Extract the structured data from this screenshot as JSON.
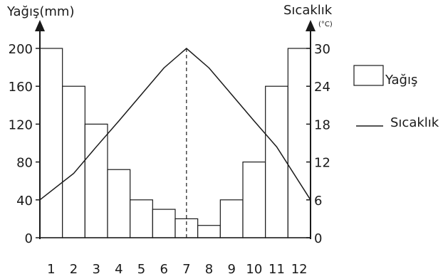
{
  "chart_data": {
    "type": "bar",
    "categories": [
      "1",
      "2",
      "3",
      "4",
      "5",
      "6",
      "7",
      "8",
      "9",
      "10",
      "11",
      "12"
    ],
    "series": [
      {
        "name": "Yağış",
        "type": "bar",
        "axis": "left",
        "values": [
          200,
          160,
          120,
          72,
          40,
          30,
          20,
          13,
          40,
          80,
          160,
          200
        ]
      },
      {
        "name": "Sıcaklık",
        "type": "line",
        "axis": "right",
        "values": [
          6,
          10.2,
          14.4,
          18.5,
          22.7,
          26.9,
          30,
          26.9,
          22.7,
          18.5,
          14.4,
          6
        ]
      }
    ],
    "y_left": {
      "label": "Yağış(mm)",
      "ticks": [
        "0",
        "40",
        "80",
        "120",
        "160",
        "200"
      ],
      "lim": [
        0,
        200
      ]
    },
    "y_right": {
      "label": "Sıcaklık",
      "unit": "(°C)",
      "ticks": [
        "0",
        "6",
        "12",
        "18",
        "24",
        "30"
      ],
      "lim": [
        0,
        30
      ]
    },
    "peak_marker": {
      "category": "7",
      "style": "dashed vertical line"
    },
    "legend": {
      "placement": "right",
      "items": [
        {
          "label": "Yağış",
          "symbol": "box"
        },
        {
          "label": "Sıcaklık",
          "symbol": "line"
        }
      ]
    },
    "grid": false,
    "colors": {
      "ink": "#1a1a1a",
      "bar_fill": "#ffffff"
    }
  }
}
